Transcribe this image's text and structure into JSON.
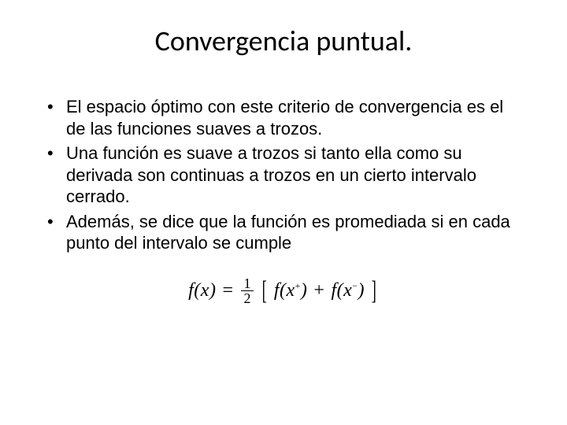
{
  "slide": {
    "title": "Convergencia puntual.",
    "bullets": [
      "El espacio óptimo con este criterio de convergencia es el de las funciones suaves a trozos.",
      "Una función es suave a trozos si tanto ella como su derivada son continuas a trozos en un cierto intervalo cerrado.",
      "Además, se dice que la función es promediada si en cada punto del intervalo se cumple"
    ],
    "formula": {
      "lhs": "f(x)",
      "equals1": "=",
      "frac_num": "1",
      "frac_den": "2",
      "lbracket": "[",
      "term1": "f(x",
      "sup_plus": "+",
      "close1": ")",
      "plus": "+",
      "term2": "f(x",
      "sup_minus": "−",
      "close2": ")",
      "rbracket": "]"
    }
  },
  "style": {
    "background": "#ffffff",
    "text_color": "#000000",
    "title_fontsize": 36,
    "body_fontsize": 22,
    "formula_fontsize": 24,
    "title_font": "Calibri",
    "body_font": "Arial",
    "formula_font": "Times New Roman"
  }
}
